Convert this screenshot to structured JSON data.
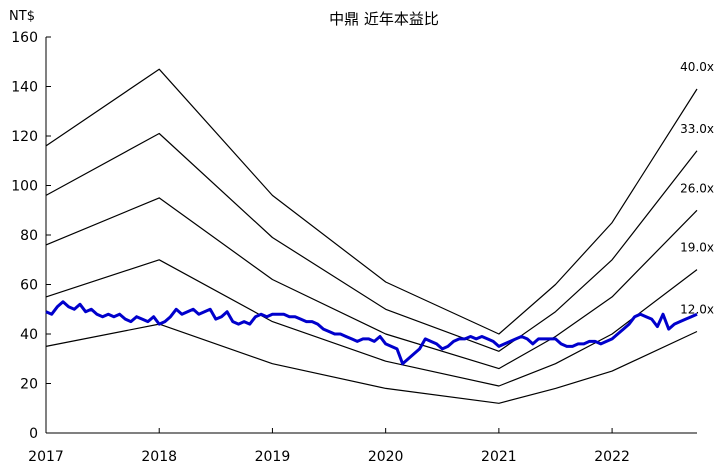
{
  "chart_data": {
    "type": "line",
    "title": "中鼎 近年本益比",
    "unit_label": "NT$",
    "xlabel": "",
    "ylabel": "",
    "xlim": [
      2017,
      2022.75
    ],
    "ylim": [
      0,
      160
    ],
    "x_ticks": [
      2017,
      2018,
      2019,
      2020,
      2021,
      2022
    ],
    "y_ticks": [
      0,
      20,
      40,
      60,
      80,
      100,
      120,
      140,
      160
    ],
    "grid": false,
    "legend": "none",
    "colors": {
      "price": "#0000cc",
      "bands": "#000000",
      "axis": "#000000"
    },
    "series": [
      {
        "name": "40.0x",
        "x": [
          2017,
          2018,
          2019,
          2020,
          2021,
          2021.5,
          2022,
          2022.75
        ],
        "y": [
          116,
          147,
          96,
          61,
          40,
          60,
          85,
          139
        ]
      },
      {
        "name": "33.0x",
        "x": [
          2017,
          2018,
          2019,
          2020,
          2021,
          2021.5,
          2022,
          2022.75
        ],
        "y": [
          96,
          121,
          79,
          50,
          33,
          49,
          70,
          114
        ]
      },
      {
        "name": "26.0x",
        "x": [
          2017,
          2018,
          2019,
          2020,
          2021,
          2021.5,
          2022,
          2022.75
        ],
        "y": [
          76,
          95,
          62,
          40,
          26,
          39,
          55,
          90
        ]
      },
      {
        "name": "19.0x",
        "x": [
          2017,
          2018,
          2019,
          2020,
          2021,
          2021.5,
          2022,
          2022.75
        ],
        "y": [
          55,
          70,
          45,
          29,
          19,
          28,
          40,
          66
        ]
      },
      {
        "name": "12.0x",
        "x": [
          2017,
          2018,
          2019,
          2020,
          2021,
          2021.5,
          2022,
          2022.75
        ],
        "y": [
          35,
          44,
          28,
          18,
          12,
          18,
          25,
          41
        ]
      },
      {
        "name": "",
        "x": [
          2017,
          2017.05,
          2017.1,
          2017.15,
          2017.2,
          2017.25,
          2017.3,
          2017.35,
          2017.4,
          2017.45,
          2017.5,
          2017.55,
          2017.6,
          2017.65,
          2017.7,
          2017.75,
          2017.8,
          2017.85,
          2017.9,
          2017.95,
          2018,
          2018.05,
          2018.1,
          2018.15,
          2018.2,
          2018.25,
          2018.3,
          2018.35,
          2018.4,
          2018.45,
          2018.5,
          2018.55,
          2018.6,
          2018.65,
          2018.7,
          2018.75,
          2018.8,
          2018.85,
          2018.9,
          2018.95,
          2019,
          2019.05,
          2019.1,
          2019.15,
          2019.2,
          2019.25,
          2019.3,
          2019.35,
          2019.4,
          2019.45,
          2019.5,
          2019.55,
          2019.6,
          2019.65,
          2019.7,
          2019.75,
          2019.8,
          2019.85,
          2019.9,
          2019.95,
          2020,
          2020.05,
          2020.1,
          2020.15,
          2020.2,
          2020.25,
          2020.3,
          2020.35,
          2020.4,
          2020.45,
          2020.5,
          2020.55,
          2020.6,
          2020.65,
          2020.7,
          2020.75,
          2020.8,
          2020.85,
          2020.9,
          2020.95,
          2021,
          2021.05,
          2021.1,
          2021.15,
          2021.2,
          2021.25,
          2021.3,
          2021.35,
          2021.4,
          2021.45,
          2021.5,
          2021.55,
          2021.6,
          2021.65,
          2021.7,
          2021.75,
          2021.8,
          2021.85,
          2021.9,
          2021.95,
          2022,
          2022.05,
          2022.1,
          2022.15,
          2022.2,
          2022.25,
          2022.3,
          2022.35,
          2022.4,
          2022.45,
          2022.5,
          2022.55,
          2022.6,
          2022.65,
          2022.7,
          2022.75
        ],
        "y": [
          49,
          48,
          51,
          53,
          51,
          50,
          52,
          49,
          50,
          48,
          47,
          48,
          47,
          48,
          46,
          45,
          47,
          46,
          45,
          47,
          44,
          45,
          47,
          50,
          48,
          49,
          50,
          48,
          49,
          50,
          46,
          47,
          49,
          45,
          44,
          45,
          44,
          47,
          48,
          47,
          48,
          48,
          48,
          47,
          47,
          46,
          45,
          45,
          44,
          42,
          41,
          40,
          40,
          39,
          38,
          37,
          38,
          38,
          37,
          39,
          36,
          35,
          34,
          28,
          30,
          32,
          34,
          38,
          37,
          36,
          34,
          35,
          37,
          38,
          38,
          39,
          38,
          39,
          38,
          37,
          35,
          36,
          37,
          38,
          39,
          38,
          36,
          38,
          38,
          38,
          38,
          36,
          35,
          35,
          36,
          36,
          37,
          37,
          36,
          37,
          38,
          40,
          42,
          44,
          47,
          48,
          47,
          46,
          43,
          48,
          42,
          44,
          45,
          46,
          47,
          48
        ]
      }
    ]
  }
}
